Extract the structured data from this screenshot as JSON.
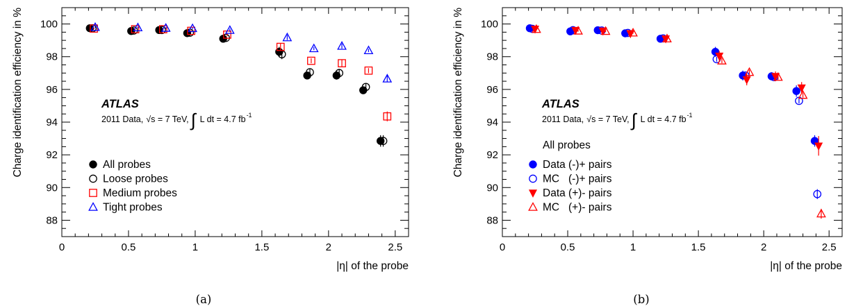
{
  "chart_data": [
    {
      "type": "scatter",
      "panel_caption": "(a)",
      "ylabel": "Charge identification efficiency in %",
      "xlabel": "|η| of the probe",
      "xlim": [
        0,
        2.6
      ],
      "ylim": [
        87,
        101
      ],
      "x_ticks": [
        0,
        0.5,
        1,
        1.5,
        2,
        2.5
      ],
      "x_tick_labels": [
        "0",
        "0.5",
        "1",
        "1.5",
        "2",
        "2.5"
      ],
      "y_ticks": [
        88,
        90,
        92,
        94,
        96,
        98,
        100
      ],
      "y_tick_labels": [
        "88",
        "90",
        "92",
        "94",
        "96",
        "98",
        "100"
      ],
      "atlas_label": "ATLAS",
      "annotation": {
        "data": "2011 Data,",
        "sqrt_s": "√s = 7 TeV,",
        "lumi": "L dt = 4.7 fb",
        "lumi_exp": "-1"
      },
      "legend_title": "",
      "legend_placement": "lower-left",
      "series": [
        {
          "name": "All probes",
          "marker": "filled-circle",
          "color": "#000000",
          "x": [
            0.21,
            0.52,
            0.73,
            0.94,
            1.21,
            1.63,
            1.84,
            2.06,
            2.26,
            2.39
          ],
          "y": [
            99.74,
            99.57,
            99.63,
            99.44,
            99.1,
            98.3,
            96.85,
            96.85,
            95.95,
            92.85
          ],
          "err": [
            0.05,
            0.05,
            0.05,
            0.05,
            0.1,
            0.3,
            0.2,
            0.25,
            0.2,
            0.35
          ]
        },
        {
          "name": "Loose probes",
          "marker": "open-circle",
          "color": "#000000",
          "x": [
            0.23,
            0.54,
            0.75,
            0.96,
            1.23,
            1.65,
            1.86,
            2.08,
            2.28,
            2.41
          ],
          "y": [
            99.74,
            99.6,
            99.63,
            99.47,
            99.15,
            98.15,
            97.05,
            97.0,
            96.15,
            92.85
          ],
          "err": [
            0.05,
            0.05,
            0.05,
            0.05,
            0.1,
            0.3,
            0.2,
            0.25,
            0.2,
            0.35
          ]
        },
        {
          "name": "Medium probes",
          "marker": "open-square",
          "color": "#ff0000",
          "x": [
            0.24,
            0.55,
            0.76,
            0.97,
            1.24,
            1.64,
            1.87,
            2.1,
            2.3,
            2.44
          ],
          "y": [
            99.72,
            99.68,
            99.68,
            99.58,
            99.35,
            98.6,
            97.75,
            97.6,
            97.15,
            94.35
          ],
          "err": [
            0.05,
            0.05,
            0.05,
            0.05,
            0.1,
            0.2,
            0.15,
            0.2,
            0.15,
            0.3
          ]
        },
        {
          "name": "Tight probes",
          "marker": "open-triangle",
          "color": "#0000ff",
          "x": [
            0.25,
            0.57,
            0.78,
            0.98,
            1.26,
            1.69,
            1.89,
            2.1,
            2.3,
            2.44
          ],
          "y": [
            99.8,
            99.78,
            99.75,
            99.73,
            99.62,
            99.17,
            98.5,
            98.65,
            98.38,
            96.65
          ],
          "err": [
            0.05,
            0.05,
            0.05,
            0.05,
            0.1,
            0.15,
            0.1,
            0.15,
            0.1,
            0.2
          ]
        }
      ]
    },
    {
      "type": "scatter",
      "panel_caption": "(b)",
      "ylabel": "Charge identification efficiency in %",
      "xlabel": "|η| of the probe",
      "xlim": [
        0,
        2.6
      ],
      "ylim": [
        87,
        101
      ],
      "x_ticks": [
        0,
        0.5,
        1,
        1.5,
        2,
        2.5
      ],
      "x_tick_labels": [
        "0",
        "0.5",
        "1",
        "1.5",
        "2",
        "2.5"
      ],
      "y_ticks": [
        88,
        90,
        92,
        94,
        96,
        98,
        100
      ],
      "y_tick_labels": [
        "88",
        "90",
        "92",
        "94",
        "96",
        "98",
        "100"
      ],
      "atlas_label": "ATLAS",
      "annotation": {
        "data": "2011 Data,",
        "sqrt_s": "√s = 7 TeV,",
        "lumi": "L dt = 4.7 fb",
        "lumi_exp": "-1"
      },
      "legend_title": "All probes",
      "legend_placement": "lower-left",
      "series": [
        {
          "name": "Data (-)+ pairs",
          "marker": "filled-circle",
          "color": "#0000ff",
          "x": [
            0.21,
            0.52,
            0.73,
            0.94,
            1.21,
            1.63,
            1.84,
            2.06,
            2.25,
            2.39
          ],
          "y": [
            99.74,
            99.55,
            99.62,
            99.43,
            99.1,
            98.3,
            96.85,
            96.8,
            95.9,
            92.85
          ],
          "err": [
            0.05,
            0.05,
            0.05,
            0.05,
            0.1,
            0.3,
            0.3,
            0.25,
            0.35,
            0.35
          ]
        },
        {
          "name": "MC   (-)+ pairs",
          "marker": "open-circle",
          "color": "#0000ff",
          "x": [
            0.23,
            0.54,
            0.76,
            0.96,
            1.23,
            1.64,
            1.86,
            2.08,
            2.27,
            2.41
          ],
          "y": [
            99.7,
            99.62,
            99.6,
            99.45,
            99.12,
            97.85,
            96.85,
            96.75,
            95.3,
            89.6
          ],
          "err": [
            0.05,
            0.05,
            0.05,
            0.05,
            0.1,
            0.15,
            0.15,
            0.15,
            0.15,
            0.3
          ]
        },
        {
          "name": "Data (+)- pairs",
          "marker": "filled-triangle-down",
          "color": "#ff0000",
          "x": [
            0.25,
            0.56,
            0.77,
            0.98,
            1.25,
            1.66,
            1.87,
            2.09,
            2.29,
            2.42
          ],
          "y": [
            99.7,
            99.62,
            99.58,
            99.42,
            99.1,
            98.05,
            96.6,
            96.8,
            96.1,
            92.55
          ],
          "err": [
            0.05,
            0.05,
            0.05,
            0.05,
            0.1,
            0.3,
            0.35,
            0.3,
            0.35,
            0.6
          ]
        },
        {
          "name": "MC   (+)- pairs",
          "marker": "open-triangle",
          "color": "#ff0000",
          "x": [
            0.26,
            0.58,
            0.79,
            1.0,
            1.26,
            1.68,
            1.89,
            2.11,
            2.3,
            2.44
          ],
          "y": [
            99.68,
            99.58,
            99.56,
            99.46,
            99.1,
            97.75,
            97.05,
            96.75,
            95.65,
            88.4
          ],
          "err": [
            0.05,
            0.05,
            0.05,
            0.05,
            0.1,
            0.15,
            0.15,
            0.15,
            0.15,
            0.3
          ]
        }
      ]
    }
  ]
}
